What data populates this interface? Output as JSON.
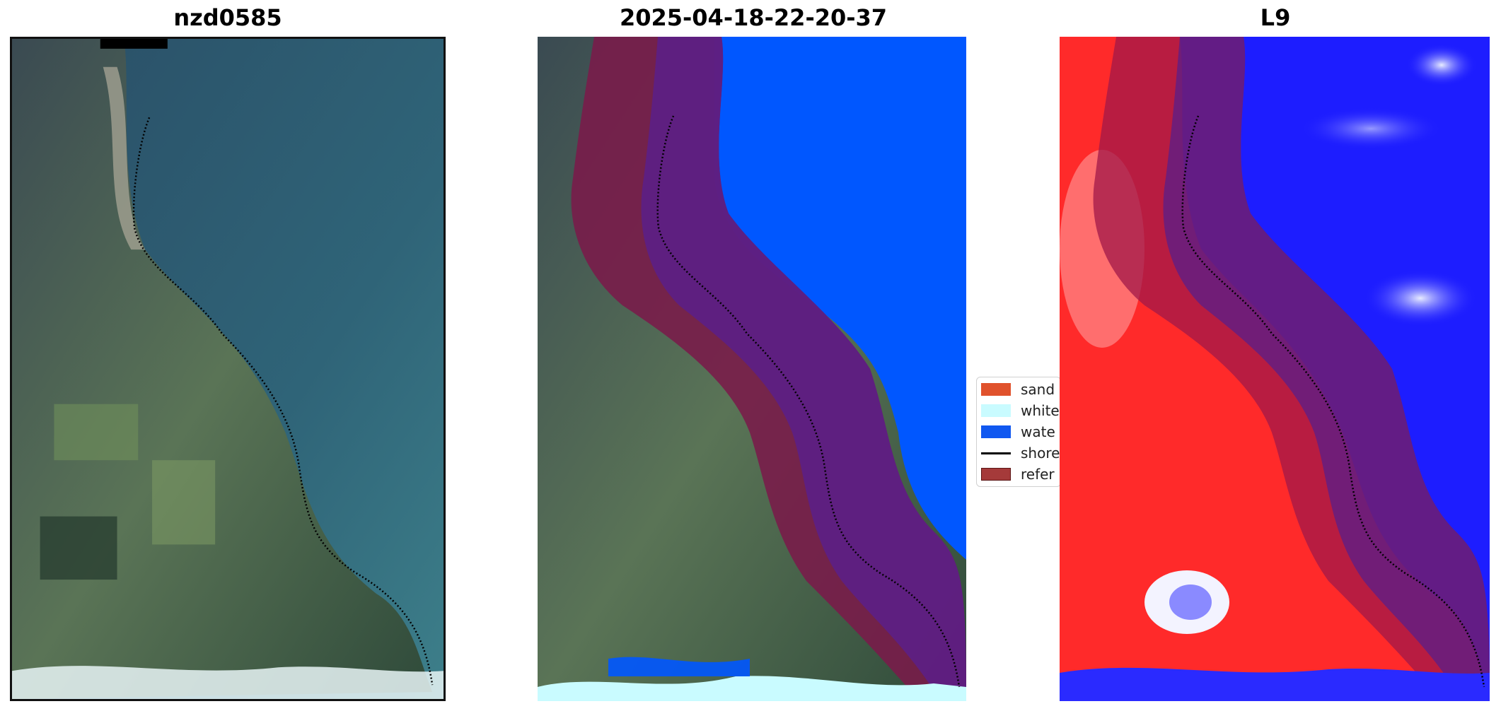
{
  "panels": {
    "left": {
      "title": "nzd0585"
    },
    "middle": {
      "title": "2025-04-18-22-20-37"
    },
    "right": {
      "title": "L9"
    }
  },
  "legend": {
    "items": [
      {
        "label": "sand",
        "color": "#e0522c",
        "kind": "patch"
      },
      {
        "label": "white",
        "color": "#c9fbff",
        "kind": "patch"
      },
      {
        "label": "wate",
        "color": "#1058f0",
        "kind": "patch"
      },
      {
        "label": "shore",
        "color": "#000000",
        "kind": "line"
      },
      {
        "label": "refer",
        "color": "#a53a3a",
        "kind": "patch"
      }
    ]
  },
  "colors": {
    "water_class": "#0057ff",
    "whitewater_class": "#c9fbff",
    "reference_buffer": "#7a1a4a",
    "sea_rgb": "#2c5d73",
    "land_rgb": "#4d6a55",
    "index_land": "#ff2a2a",
    "index_water": "#1d1dff"
  }
}
